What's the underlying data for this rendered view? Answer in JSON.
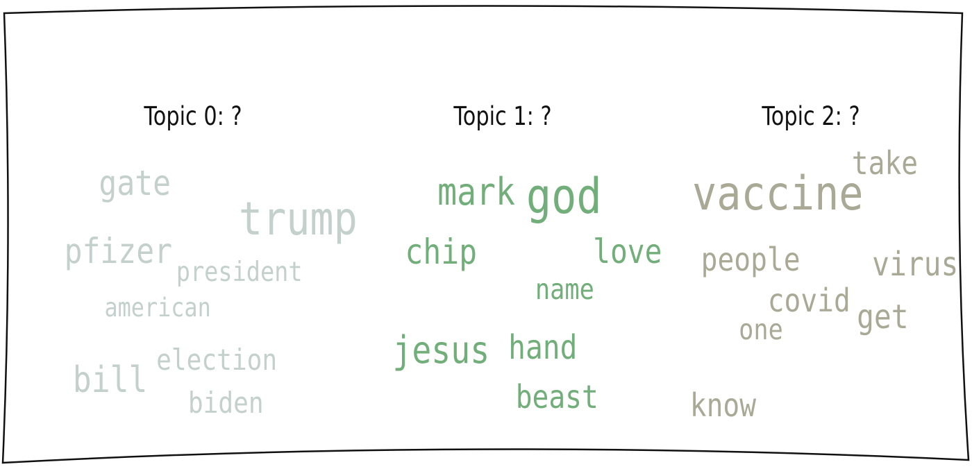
{
  "palette": {
    "frame": "#111111",
    "topic0_word": "#c4d0cc",
    "topic1_word": "#72ae7a",
    "topic2_word": "#a9a996"
  },
  "topics": [
    {
      "title": "Topic 0: ?",
      "color": "#c4d0cc",
      "words": [
        {
          "text": "trump",
          "weight": 1.0
        },
        {
          "text": "gate",
          "weight": 0.72
        },
        {
          "text": "pfizer",
          "weight": 0.72
        },
        {
          "text": "bill",
          "weight": 0.7
        },
        {
          "text": "election",
          "weight": 0.6
        },
        {
          "text": "president",
          "weight": 0.55
        },
        {
          "text": "american",
          "weight": 0.53
        },
        {
          "text": "biden",
          "weight": 0.58
        }
      ]
    },
    {
      "title": "Topic 1: ?",
      "color": "#72ae7a",
      "words": [
        {
          "text": "god",
          "weight": 1.0
        },
        {
          "text": "mark",
          "weight": 0.79
        },
        {
          "text": "chip",
          "weight": 0.74
        },
        {
          "text": "love",
          "weight": 0.7
        },
        {
          "text": "name",
          "weight": 0.6
        },
        {
          "text": "jesus",
          "weight": 0.78
        },
        {
          "text": "hand",
          "weight": 0.7
        },
        {
          "text": "beast",
          "weight": 0.68
        }
      ]
    },
    {
      "title": "Topic 2: ?",
      "color": "#a9a996",
      "words": [
        {
          "text": "vaccine",
          "weight": 1.0
        },
        {
          "text": "take",
          "weight": 0.66
        },
        {
          "text": "people",
          "weight": 0.68
        },
        {
          "text": "virus",
          "weight": 0.7
        },
        {
          "text": "covid",
          "weight": 0.66
        },
        {
          "text": "get",
          "weight": 0.7
        },
        {
          "text": "one",
          "weight": 0.6
        },
        {
          "text": "know",
          "weight": 0.66
        }
      ]
    }
  ]
}
